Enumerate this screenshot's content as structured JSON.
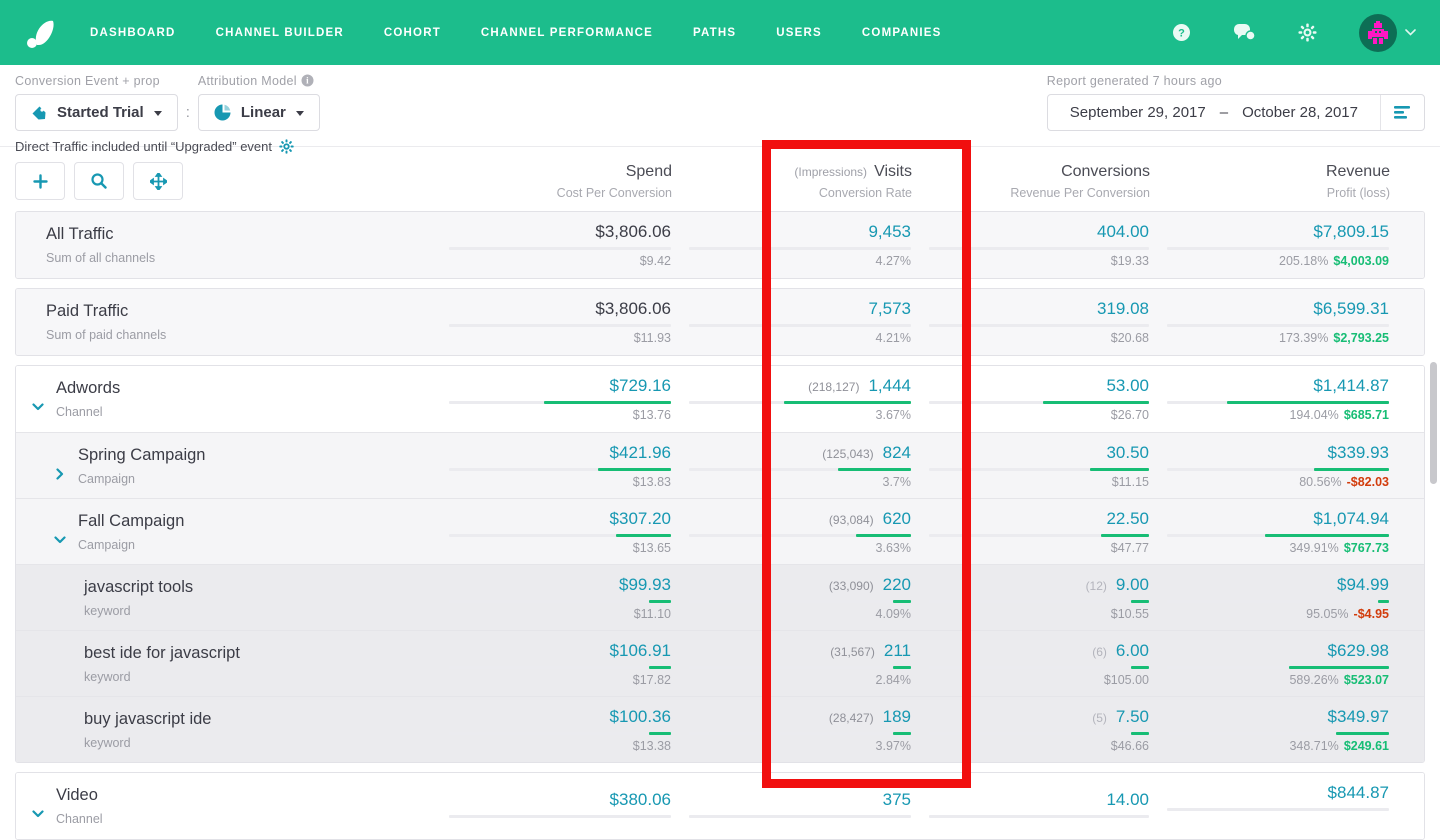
{
  "nav": {
    "items": [
      "DASHBOARD",
      "CHANNEL BUILDER",
      "COHORT",
      "CHANNEL PERFORMANCE",
      "PATHS",
      "USERS",
      "COMPANIES"
    ],
    "right_icons": [
      "help-icon",
      "chat-icon",
      "gear-icon",
      "avatar"
    ],
    "bg_color": "#1cbd8c"
  },
  "filters": {
    "conversion_event_label": "Conversion Event  + prop",
    "conversion_event_value": "Started Trial",
    "separator": ":",
    "attribution_model_label": "Attribution Model",
    "attribution_model_value": "Linear",
    "note": "Direct Traffic included until “Upgraded” event",
    "report_generated": "Report generated 7 hours ago",
    "date_start": "September 29, 2017",
    "date_dash": "–",
    "date_end": "October 28, 2017"
  },
  "table": {
    "headers": {
      "spend": {
        "title": "Spend",
        "sub": "Cost Per Conversion"
      },
      "visits": {
        "prefix": "(Impressions)",
        "title": "Visits",
        "sub": "Conversion Rate"
      },
      "conversions": {
        "title": "Conversions",
        "sub": "Revenue Per Conversion"
      },
      "revenue": {
        "title": "Revenue",
        "sub": "Profit (loss)"
      }
    },
    "groups": [
      {
        "rows": [
          {
            "name": "All Traffic",
            "type": "Sum of all channels",
            "chevron": null,
            "indent": "s",
            "bg": "summary",
            "spendDark": true,
            "spend": {
              "v": "$3,806.06",
              "sub": "$9.42",
              "bar": 0
            },
            "visits": {
              "pre": null,
              "v": "9,453",
              "sub": "4.27%",
              "bar": 0
            },
            "conv": {
              "pre": null,
              "v": "404.00",
              "sub": "$19.33",
              "bar": 0
            },
            "rev": {
              "v": "$7,809.15",
              "pct": "205.18%",
              "amt": "$4,003.09",
              "neg": false,
              "bar": 0
            }
          }
        ]
      },
      {
        "rows": [
          {
            "name": "Paid Traffic",
            "type": "Sum of paid channels",
            "chevron": null,
            "indent": "s",
            "bg": "summary",
            "spendDark": true,
            "spend": {
              "v": "$3,806.06",
              "sub": "$11.93",
              "bar": 0
            },
            "visits": {
              "pre": null,
              "v": "7,573",
              "sub": "4.21%",
              "bar": 0
            },
            "conv": {
              "pre": null,
              "v": "319.08",
              "sub": "$20.68",
              "bar": 0
            },
            "rev": {
              "v": "$6,599.31",
              "pct": "173.39%",
              "amt": "$2,793.25",
              "neg": false,
              "bar": 0
            }
          }
        ]
      },
      {
        "rows": [
          {
            "name": "Adwords",
            "type": "Channel",
            "chevron": "down",
            "indent": "0",
            "bg": "white",
            "spendDark": false,
            "spend": {
              "v": "$729.16",
              "sub": "$13.76",
              "bar": 57
            },
            "visits": {
              "pre": "(218,127)",
              "v": "1,444",
              "sub": "3.67%",
              "bar": 57
            },
            "conv": {
              "pre": null,
              "v": "53.00",
              "sub": "$26.70",
              "bar": 48
            },
            "rev": {
              "v": "$1,414.87",
              "pct": "194.04%",
              "amt": "$685.71",
              "neg": false,
              "bar": 73
            }
          },
          {
            "name": "Spring Campaign",
            "type": "Campaign",
            "chevron": "right",
            "indent": "1",
            "bg": "camp",
            "spendDark": false,
            "spend": {
              "v": "$421.96",
              "sub": "$13.83",
              "bar": 33
            },
            "visits": {
              "pre": "(125,043)",
              "v": "824",
              "sub": "3.7%",
              "bar": 33
            },
            "conv": {
              "pre": null,
              "v": "30.50",
              "sub": "$11.15",
              "bar": 27
            },
            "rev": {
              "v": "$339.93",
              "pct": "80.56%",
              "amt": "-$82.03",
              "neg": true,
              "bar": 34
            }
          },
          {
            "name": "Fall Campaign",
            "type": "Campaign",
            "chevron": "down",
            "indent": "1",
            "bg": "camp",
            "spendDark": false,
            "spend": {
              "v": "$307.20",
              "sub": "$13.65",
              "bar": 25
            },
            "visits": {
              "pre": "(93,084)",
              "v": "620",
              "sub": "3.63%",
              "bar": 25
            },
            "conv": {
              "pre": null,
              "v": "22.50",
              "sub": "$47.77",
              "bar": 22
            },
            "rev": {
              "v": "$1,074.94",
              "pct": "349.91%",
              "amt": "$767.73",
              "neg": false,
              "bar": 56
            }
          },
          {
            "name": "javascript tools",
            "type": "keyword",
            "chevron": null,
            "indent": "2",
            "bg": "kw",
            "spendDark": false,
            "spend": {
              "v": "$99.93",
              "sub": "$11.10",
              "bar": 10
            },
            "visits": {
              "pre": "(33,090)",
              "v": "220",
              "sub": "4.09%",
              "bar": 8
            },
            "conv": {
              "pre": "(12)",
              "v": "9.00",
              "sub": "$10.55",
              "bar": 8
            },
            "rev": {
              "v": "$94.99",
              "pct": "95.05%",
              "amt": "-$4.95",
              "neg": true,
              "bar": 5
            }
          },
          {
            "name": "best ide for javascript",
            "type": "keyword",
            "chevron": null,
            "indent": "2",
            "bg": "kw",
            "spendDark": false,
            "spend": {
              "v": "$106.91",
              "sub": "$17.82",
              "bar": 10
            },
            "visits": {
              "pre": "(31,567)",
              "v": "211",
              "sub": "2.84%",
              "bar": 8
            },
            "conv": {
              "pre": "(6)",
              "v": "6.00",
              "sub": "$105.00",
              "bar": 8
            },
            "rev": {
              "v": "$629.98",
              "pct": "589.26%",
              "amt": "$523.07",
              "neg": false,
              "bar": 45
            }
          },
          {
            "name": "buy javascript ide",
            "type": "keyword",
            "chevron": null,
            "indent": "2",
            "bg": "kw",
            "spendDark": false,
            "spend": {
              "v": "$100.36",
              "sub": "$13.38",
              "bar": 10
            },
            "visits": {
              "pre": "(28,427)",
              "v": "189",
              "sub": "3.97%",
              "bar": 8
            },
            "conv": {
              "pre": "(5)",
              "v": "7.50",
              "sub": "$46.66",
              "bar": 8
            },
            "rev": {
              "v": "$349.97",
              "pct": "348.71%",
              "amt": "$249.61",
              "neg": false,
              "bar": 24
            }
          }
        ]
      },
      {
        "rows": [
          {
            "name": "Video",
            "type": "Channel",
            "chevron": "down",
            "indent": "0",
            "bg": "white",
            "spendDark": false,
            "spend": {
              "v": "$380.06",
              "sub": "",
              "bar": 0
            },
            "visits": {
              "pre": null,
              "v": "375",
              "sub": "",
              "bar": 0
            },
            "conv": {
              "pre": null,
              "v": "14.00",
              "sub": "",
              "bar": 0
            },
            "rev": {
              "v": "$844.87",
              "pct": "",
              "amt": "",
              "neg": false,
              "bar": 0
            }
          }
        ]
      }
    ]
  },
  "annotation": {
    "type": "highlight-rectangle",
    "color": "#f10f0f",
    "highlighted_column": "Visits"
  },
  "colors": {
    "accent_teal": "#1798b2",
    "positive_green": "#17bd75",
    "negative_red": "#d23c0c",
    "nav_green": "#1cbd8c"
  }
}
